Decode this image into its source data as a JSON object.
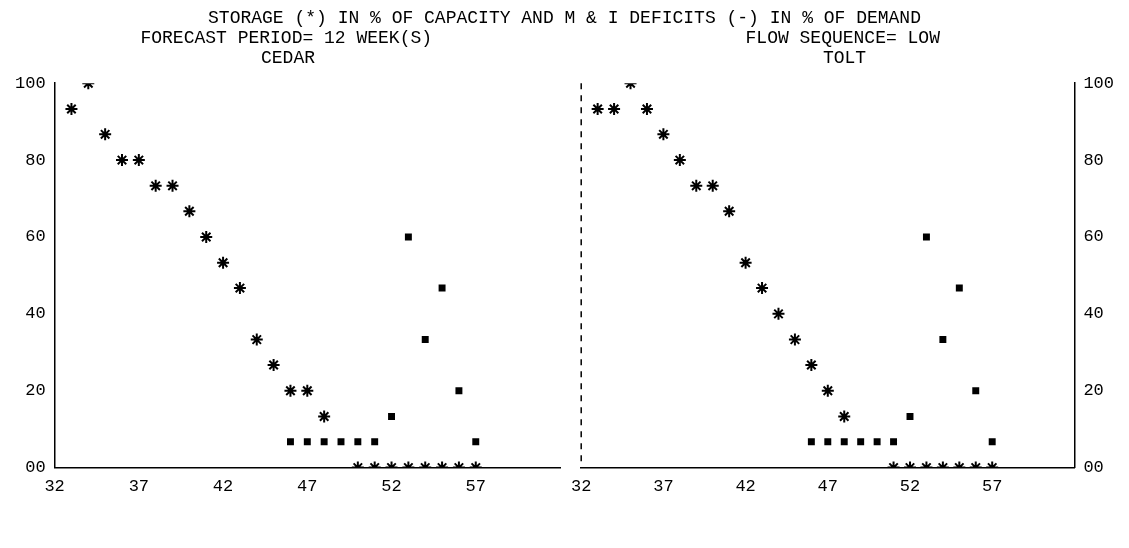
{
  "chart_data": [
    {
      "type": "scatter",
      "title": "CEDAR",
      "annotations": [
        "STORAGE (*) IN % OF CAPACITY AND M & I DEFICITS (-) IN % OF DEMAND",
        "FORECAST PERIOD= 12 WEEK(S)"
      ],
      "xlim": [
        32,
        62
      ],
      "xticks": [
        32,
        37,
        42,
        47,
        52,
        57
      ],
      "ylim": [
        0,
        100
      ],
      "yticks": [
        {
          "value": 0,
          "label": "00"
        },
        20,
        40,
        60,
        80,
        100
      ],
      "grid": false,
      "legend": false,
      "series": [
        {
          "color": "#000000",
          "marker": "cross",
          "x": [
            33,
            34,
            35,
            36,
            37,
            38,
            39,
            40,
            41,
            42,
            43,
            44,
            45,
            46,
            47,
            48,
            50,
            51,
            52,
            53,
            54,
            55,
            56,
            57
          ],
          "values": [
            93.3,
            100,
            86.7,
            80,
            80,
            73.3,
            73.3,
            66.7,
            60,
            53.3,
            46.7,
            33.3,
            26.7,
            20,
            20,
            13.3,
            0,
            0,
            0,
            0,
            0,
            0,
            0,
            0
          ]
        },
        {
          "color": "#000000",
          "marker": "square",
          "x": [
            46,
            47,
            48,
            49,
            50,
            51,
            52,
            53,
            54,
            55,
            56,
            57
          ],
          "values": [
            6.7,
            6.7,
            6.7,
            6.7,
            6.7,
            6.7,
            13.3,
            60,
            33.3,
            46.7,
            20,
            6.7
          ]
        }
      ]
    },
    {
      "type": "scatter",
      "title": "TOLT",
      "annotations": [
        "FLOW SEQUENCE= LOW"
      ],
      "xlim": [
        32,
        62
      ],
      "xticks": [
        32,
        37,
        42,
        47,
        52,
        57
      ],
      "y2lim": [
        0,
        100
      ],
      "y2ticks": [
        {
          "value": 0,
          "label": "00"
        },
        20,
        40,
        60,
        80,
        100
      ],
      "grid": false,
      "legend": false,
      "series": [
        {
          "color": "#000000",
          "marker": "cross",
          "axis": "y2",
          "x": [
            33,
            34,
            35,
            36,
            37,
            38,
            39,
            40,
            41,
            42,
            43,
            44,
            45,
            46,
            47,
            48,
            51,
            52,
            53,
            54,
            55,
            56,
            57
          ],
          "values": [
            93.3,
            93.3,
            100,
            93.3,
            86.7,
            80,
            73.3,
            73.3,
            66.7,
            53.3,
            46.7,
            40,
            33.3,
            26.7,
            20,
            13.3,
            0,
            0,
            0,
            0,
            0,
            0,
            0
          ]
        },
        {
          "color": "#000000",
          "marker": "square",
          "axis": "y2",
          "x": [
            46,
            47,
            48,
            49,
            50,
            51,
            52,
            53,
            54,
            55,
            56,
            57
          ],
          "values": [
            6.7,
            6.7,
            6.7,
            6.7,
            6.7,
            6.7,
            13.3,
            60,
            33.3,
            46.7,
            20,
            6.7
          ]
        }
      ]
    }
  ]
}
